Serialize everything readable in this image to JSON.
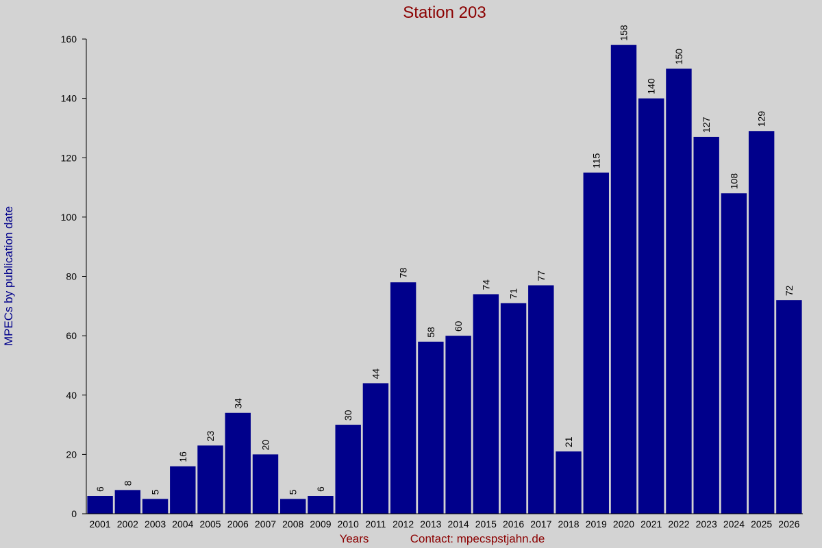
{
  "chart_data": {
    "type": "bar",
    "title": "Station 203",
    "ylabel": "MPECs by publication date",
    "xlabel": "Years",
    "note": "Contact: mpecspstjahn.de",
    "categories": [
      "2001",
      "2002",
      "2003",
      "2004",
      "2005",
      "2006",
      "2007",
      "2008",
      "2009",
      "2010",
      "2011",
      "2012",
      "2013",
      "2014",
      "2015",
      "2016",
      "2017",
      "2018",
      "2019",
      "2020",
      "2021",
      "2022",
      "2023",
      "2024",
      "2025",
      "2026"
    ],
    "values": [
      6,
      8,
      5,
      16,
      23,
      34,
      20,
      5,
      6,
      30,
      44,
      78,
      58,
      60,
      74,
      71,
      77,
      21,
      115,
      158,
      140,
      150,
      127,
      108,
      129,
      72
    ],
    "color": "#00008b",
    "ylim": [
      0,
      160
    ],
    "yticks": [
      0,
      20,
      40,
      60,
      80,
      100,
      120,
      140,
      160
    ],
    "grid": false
  }
}
